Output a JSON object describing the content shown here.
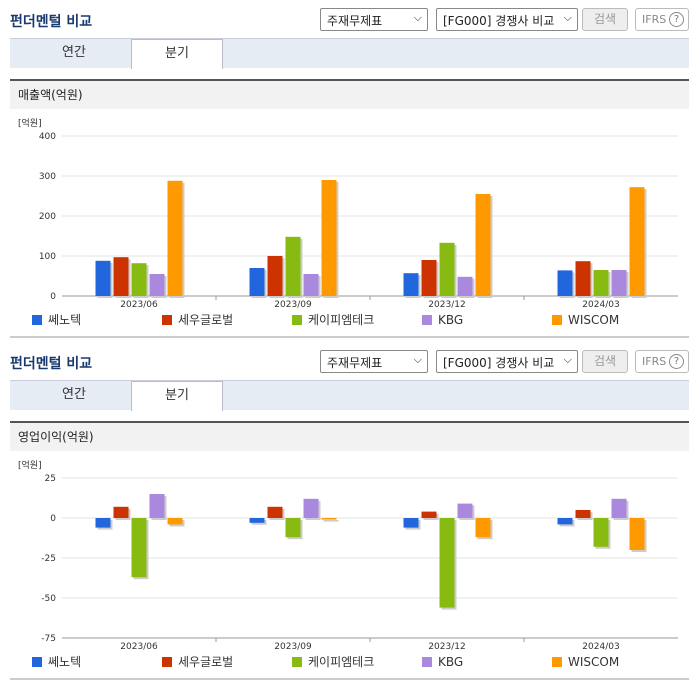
{
  "panels": [
    {
      "header": {
        "title": "펀더멘털 비교",
        "select1": "주재무제표",
        "select2": "[FG000] 경쟁사 비교",
        "search_label": "검색",
        "ifrs_label": "IFRS",
        "help": "?"
      },
      "tabs": [
        "연간",
        "분기"
      ],
      "active_tab": 1,
      "chart_title": "매출액(억원)",
      "chart_data": {
        "type": "bar",
        "unit_label": "[억원]",
        "categories": [
          "2023/06",
          "2023/09",
          "2023/12",
          "2024/03"
        ],
        "ylim": [
          0,
          400
        ],
        "yticks": [
          0,
          100,
          200,
          300,
          400
        ],
        "grid": true,
        "series": [
          {
            "name": "쎄노텍",
            "color": "#2266dd",
            "values": [
              88,
              70,
              57,
              64
            ]
          },
          {
            "name": "세우글로벌",
            "color": "#cc3300",
            "values": [
              97,
              100,
              90,
              87
            ]
          },
          {
            "name": "케이피엠테크",
            "color": "#88bb11",
            "values": [
              82,
              148,
              133,
              65
            ]
          },
          {
            "name": "KBG",
            "color": "#aa88dd",
            "values": [
              55,
              55,
              48,
              65
            ]
          },
          {
            "name": "WISCOM",
            "color": "#ff9900",
            "values": [
              288,
              290,
              255,
              272
            ]
          }
        ]
      }
    },
    {
      "header": {
        "title": "펀더멘털 비교",
        "select1": "주재무제표",
        "select2": "[FG000] 경쟁사 비교",
        "search_label": "검색",
        "ifrs_label": "IFRS",
        "help": "?"
      },
      "tabs": [
        "연간",
        "분기"
      ],
      "active_tab": 1,
      "chart_title": "영업이익(억원)",
      "chart_data": {
        "type": "bar",
        "unit_label": "[억원]",
        "categories": [
          "2023/06",
          "2023/09",
          "2023/12",
          "2024/03"
        ],
        "ylim": [
          -75,
          25
        ],
        "yticks": [
          -75,
          -50,
          -25,
          0,
          25
        ],
        "grid": true,
        "series": [
          {
            "name": "쎄노텍",
            "color": "#2266dd",
            "values": [
              -6,
              -3,
              -6,
              -4
            ]
          },
          {
            "name": "세우글로벌",
            "color": "#cc3300",
            "values": [
              7,
              7,
              4,
              5
            ]
          },
          {
            "name": "케이피엠테크",
            "color": "#88bb11",
            "values": [
              -37,
              -12,
              -56,
              -18
            ]
          },
          {
            "name": "KBG",
            "color": "#aa88dd",
            "values": [
              15,
              12,
              9,
              12
            ]
          },
          {
            "name": "WISCOM",
            "color": "#ff9900",
            "values": [
              -4,
              -1,
              -12,
              -20
            ]
          }
        ]
      }
    }
  ]
}
